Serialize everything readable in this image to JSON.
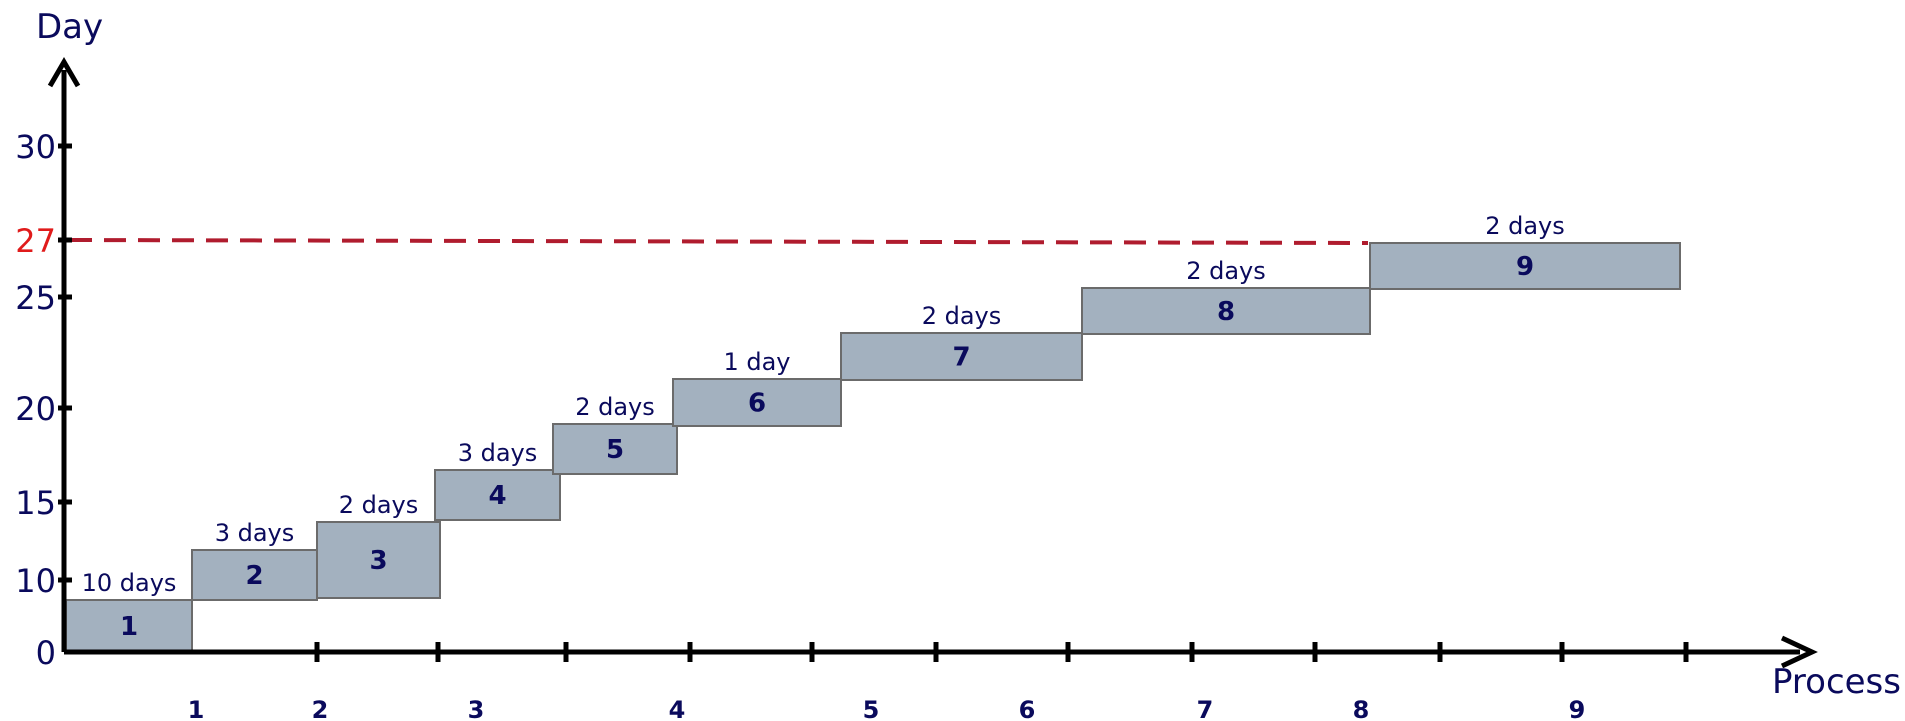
{
  "axes": {
    "y_title": "Day",
    "x_title": "Process",
    "y_ticks": [
      {
        "label": "0",
        "value": 0
      },
      {
        "label": "10",
        "value": 10
      },
      {
        "label": "15",
        "value": 15
      },
      {
        "label": "20",
        "value": 20
      },
      {
        "label": "25",
        "value": 25
      },
      {
        "label": "30",
        "value": 30
      }
    ],
    "highlight_tick": {
      "label": "27",
      "value": 27,
      "color": "#e01b1b"
    },
    "x_labels": [
      "1",
      "2",
      "3",
      "4",
      "5",
      "6",
      "7",
      "8",
      "9"
    ]
  },
  "colors": {
    "axis": "#000000",
    "box_fill": "#a3b1bf",
    "box_stroke": "#6b6b6b",
    "text": "#0a0a5c",
    "dashed_line": "#b01c2e"
  },
  "steps": [
    {
      "number": "1",
      "duration": "10 days"
    },
    {
      "number": "2",
      "duration": "3 days"
    },
    {
      "number": "3",
      "duration": "2 days"
    },
    {
      "number": "4",
      "duration": "3 days"
    },
    {
      "number": "5",
      "duration": "2 days"
    },
    {
      "number": "6",
      "duration": "1 day"
    },
    {
      "number": "7",
      "duration": "2 days"
    },
    {
      "number": "8",
      "duration": "2 days"
    },
    {
      "number": "9",
      "duration": "2 days"
    }
  ]
}
